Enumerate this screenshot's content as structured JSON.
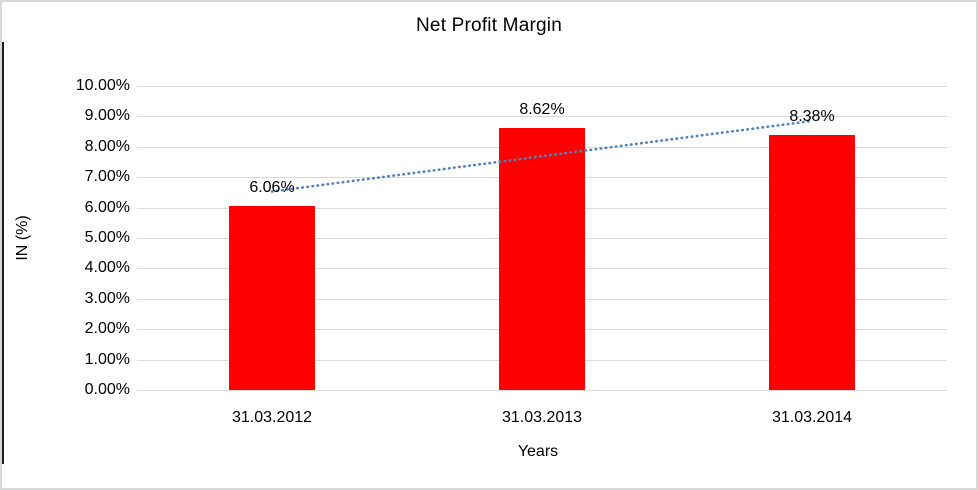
{
  "figure": {
    "bar_color": "#ff0000",
    "trendline_color": "#4f81bd",
    "gridline_color": "#d9d9d9",
    "frame_border_color": "#d8d8d8",
    "text_color": "#000000"
  },
  "chart_data": {
    "type": "bar",
    "title": "Net Profit Margin",
    "categories": [
      "31.03.2012",
      "31.03.2013",
      "31.03.2014"
    ],
    "values": [
      6.06,
      8.62,
      8.38
    ],
    "data_labels": [
      "6.06%",
      "8.62%",
      "8.38%"
    ],
    "xlabel": "Years",
    "ylabel": "IN (%)",
    "ylim": [
      0,
      10
    ],
    "ytick_step": 1,
    "ytick_labels": [
      "0.00%",
      "1.00%",
      "2.00%",
      "3.00%",
      "4.00%",
      "5.00%",
      "6.00%",
      "7.00%",
      "8.00%",
      "9.00%",
      "10.00%"
    ],
    "grid": true,
    "legend": false,
    "bar_color": "#ff0000",
    "trendline": {
      "type": "linear",
      "style": "dotted",
      "color": "#4f81bd",
      "values_at_ends": [
        6.53,
        8.85
      ]
    }
  }
}
